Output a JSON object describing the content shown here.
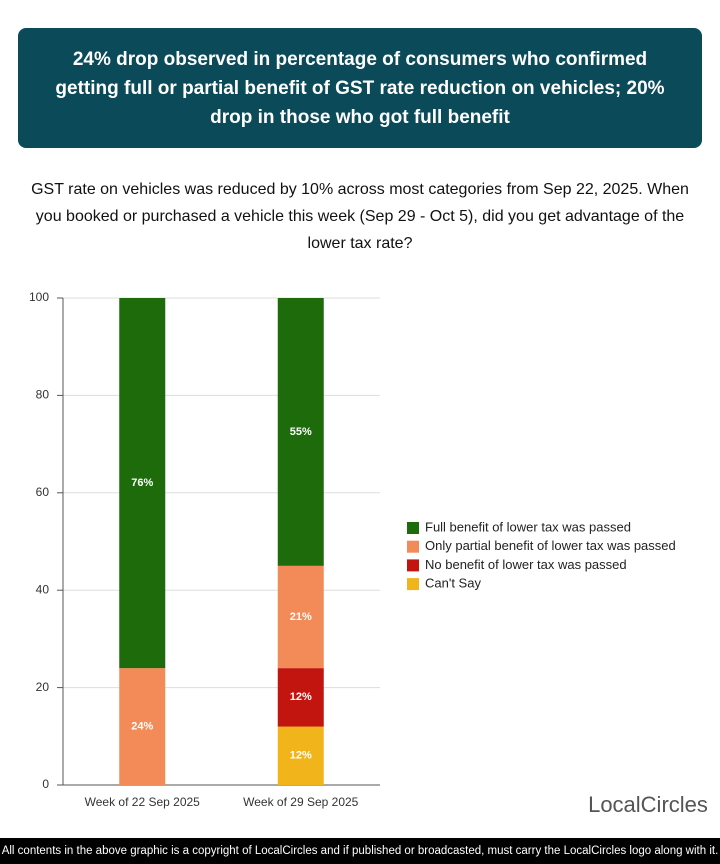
{
  "chart_data": {
    "type": "stacked_bar",
    "title": "24% drop observed in percentage of consumers who confirmed getting full or partial benefit of GST rate reduction on vehicles; 20% drop in those who got full benefit",
    "subtitle": "GST rate on vehicles was reduced by 10% across most categories from Sep 22, 2025. When you booked or purchased a vehicle this week (Sep 29 - Oct 5), did you get advantage of the lower tax rate?",
    "categories": [
      "Week of 22 Sep 2025",
      "Week of 29 Sep 2025"
    ],
    "series": [
      {
        "name": "Full benefit of lower tax was passed",
        "color": "#1e6b0b",
        "values": [
          76,
          55
        ],
        "value_labels": [
          "76%",
          "55%"
        ]
      },
      {
        "name": "Only partial benefit of lower tax was passed",
        "color": "#f28b57",
        "values": [
          24,
          21
        ],
        "value_labels": [
          "24%",
          "21%"
        ]
      },
      {
        "name": "No benefit of lower tax was passed",
        "color": "#c2150f",
        "values": [
          0,
          12
        ],
        "value_labels": [
          null,
          "12%"
        ]
      },
      {
        "name": "Can't Say",
        "color": "#f1b41a",
        "values": [
          0,
          12
        ],
        "value_labels": [
          null,
          "12%"
        ]
      }
    ],
    "ylim": [
      0,
      100
    ],
    "yticks": [
      0,
      20,
      40,
      60,
      80,
      100
    ],
    "grid": true
  },
  "logo": "LocalCircles",
  "footer": "All contents in the above graphic is a copyright of LocalCircles and if published or broadcasted, must carry the LocalCircles logo along with it."
}
